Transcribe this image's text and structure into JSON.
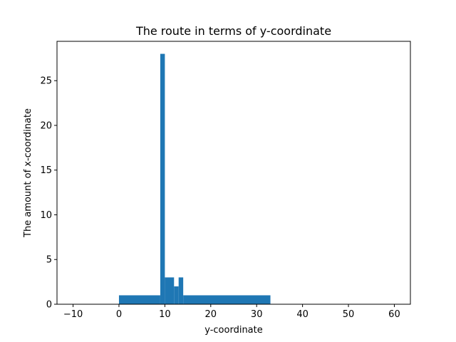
{
  "chart_data": {
    "type": "bar",
    "title": "The route in terms of y-coordinate",
    "xlabel": "y-coordinate",
    "ylabel": "The amount of x-coordinate",
    "xlim": [
      -13.5,
      63.5
    ],
    "ylim": [
      0,
      29.4
    ],
    "xticks": [
      -10,
      0,
      10,
      20,
      30,
      40,
      50,
      60
    ],
    "yticks": [
      0,
      5,
      10,
      15,
      20,
      25
    ],
    "grid": false,
    "legend": "none",
    "bar_color": "#1f77b4",
    "bins": [
      {
        "x0": 0,
        "x1": 9,
        "value": 1
      },
      {
        "x0": 9,
        "x1": 10,
        "value": 28
      },
      {
        "x0": 10,
        "x1": 12,
        "value": 3
      },
      {
        "x0": 12,
        "x1": 13,
        "value": 2
      },
      {
        "x0": 13,
        "x1": 14,
        "value": 3
      },
      {
        "x0": 14,
        "x1": 33,
        "value": 1
      }
    ]
  }
}
